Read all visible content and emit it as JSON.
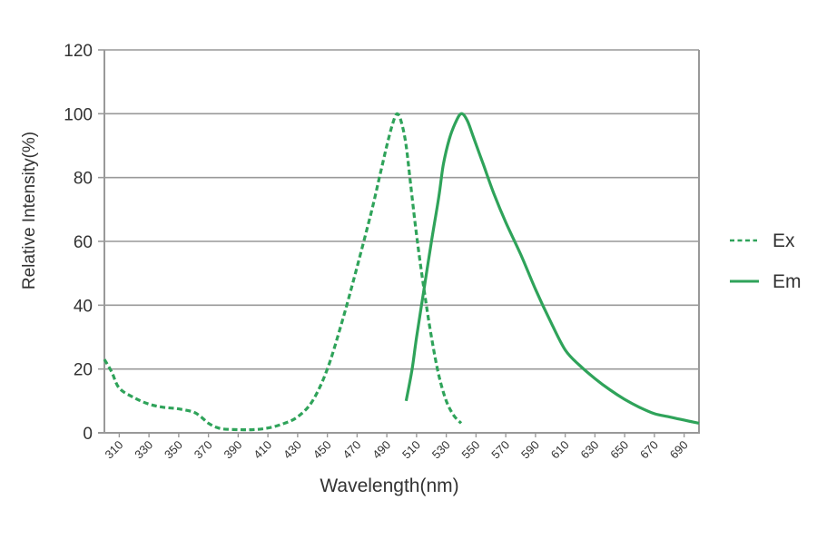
{
  "chart_data": {
    "type": "line",
    "title": "",
    "xlabel": "Wavelength(nm)",
    "ylabel": "Relative Intensity(%)",
    "xlim": [
      300,
      700
    ],
    "ylim": [
      0,
      120
    ],
    "yticks": [
      0,
      20,
      40,
      60,
      80,
      100,
      120
    ],
    "xticks": [
      310,
      330,
      350,
      370,
      390,
      410,
      430,
      450,
      470,
      490,
      510,
      530,
      550,
      570,
      590,
      610,
      630,
      650,
      670,
      690
    ],
    "grid": "horizontal",
    "legend_position": "right",
    "colors": {
      "line": "#2fa35a",
      "axis": "#999999",
      "grid": "#999999"
    },
    "series": [
      {
        "name": "Ex",
        "style": "dashed",
        "x": [
          300,
          305,
          310,
          320,
          330,
          340,
          350,
          360,
          365,
          370,
          375,
          380,
          390,
          400,
          410,
          420,
          430,
          440,
          450,
          460,
          470,
          480,
          485,
          490,
          494,
          497,
          500,
          503,
          506,
          510,
          515,
          520,
          525,
          530,
          535,
          540
        ],
        "y": [
          23,
          19,
          14,
          11,
          9,
          8,
          7.5,
          6.5,
          5,
          3,
          1.8,
          1.2,
          1,
          1,
          1.5,
          2.8,
          5,
          10,
          20,
          35,
          52,
          70,
          80,
          90,
          97,
          100,
          97,
          90,
          78,
          62,
          45,
          30,
          18,
          10,
          5.5,
          3
        ]
      },
      {
        "name": "Em",
        "style": "solid",
        "x": [
          503,
          507,
          510,
          515,
          520,
          525,
          528,
          532,
          536,
          540,
          544,
          548,
          555,
          562,
          570,
          580,
          590,
          600,
          610,
          620,
          630,
          640,
          650,
          660,
          670,
          680,
          690,
          700
        ],
        "y": [
          10,
          20,
          30,
          45,
          60,
          74,
          84,
          92,
          97,
          100,
          98,
          93,
          84,
          75,
          66,
          56,
          45,
          35,
          26,
          21,
          17,
          13.5,
          10.5,
          8,
          6,
          5,
          4,
          3
        ]
      }
    ]
  },
  "legend": {
    "items": [
      {
        "label": "Ex",
        "style": "dashed"
      },
      {
        "label": "Em",
        "style": "solid"
      }
    ]
  }
}
